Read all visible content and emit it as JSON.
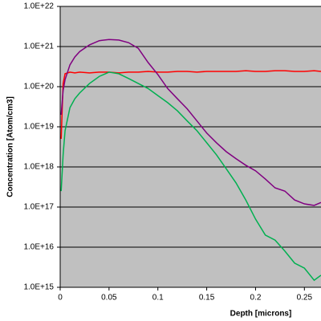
{
  "chart_data": {
    "type": "line",
    "xlabel": "Depth [microns]",
    "ylabel": "Concentration [Atom/cm3]",
    "yscale": "log",
    "grid": true,
    "background": "#c0c0c0",
    "x": [
      0.001,
      0.003,
      0.005,
      0.01,
      0.015,
      0.02,
      0.03,
      0.04,
      0.05,
      0.06,
      0.07,
      0.08,
      0.09,
      0.1,
      0.11,
      0.12,
      0.13,
      0.14,
      0.15,
      0.16,
      0.17,
      0.18,
      0.19,
      0.2,
      0.21,
      0.22,
      0.23,
      0.24,
      0.25,
      0.26,
      0.267
    ],
    "series": [
      {
        "color": "#ff0000",
        "values": [
          5e+18,
          1.2e+20,
          2.1e+20,
          2.3e+20,
          2.2e+20,
          2.3e+20,
          2.2e+20,
          2.3e+20,
          2.3e+20,
          2.2e+20,
          2.3e+20,
          2.3e+20,
          2.4e+20,
          2.3e+20,
          2.3e+20,
          2.4e+20,
          2.4e+20,
          2.3e+20,
          2.4e+20,
          2.4e+20,
          2.4e+20,
          2.4e+20,
          2.5e+20,
          2.4e+20,
          2.4e+20,
          2.5e+20,
          2.5e+20,
          2.4e+20,
          2.4e+20,
          2.5e+20,
          2.4e+20
        ]
      },
      {
        "color": "#800080",
        "values": [
          2e+19,
          8e+19,
          1.5e+20,
          3.5e+20,
          5.5e+20,
          7.5e+20,
          1.1e+21,
          1.4e+21,
          1.5e+21,
          1.45e+21,
          1.25e+21,
          9e+20,
          4e+20,
          2e+20,
          9e+19,
          5e+19,
          2.8e+19,
          1.4e+19,
          7e+18,
          4e+18,
          2.4e+18,
          1.6e+18,
          1.1e+18,
          8e+17,
          5e+17,
          3e+17,
          2.5e+17,
          1.5e+17,
          1.2e+17,
          1.1e+17,
          1.3e+17
        ]
      },
      {
        "color": "#00b050",
        "values": [
          2.5e+17,
          2e+18,
          8e+18,
          3e+19,
          5e+19,
          7e+19,
          1.2e+20,
          1.8e+20,
          2.3e+20,
          2.1e+20,
          1.6e+20,
          1.2e+20,
          9e+19,
          6e+19,
          4e+19,
          2.5e+19,
          1.4e+19,
          8e+18,
          4e+18,
          2e+18,
          9e+17,
          4e+17,
          1.5e+17,
          5e+16,
          2e+16,
          1.5e+16,
          8000000000000000.0,
          4000000000000000.0,
          3000000000000000.0,
          1500000000000000.0,
          2000000000000000.0
        ]
      }
    ],
    "xlim": [
      0,
      0.267
    ],
    "xticks": [
      0,
      0.05,
      0.1,
      0.15,
      0.2,
      0.25
    ],
    "ylim": [
      1000000000000000.0,
      1e+22
    ],
    "yticks": [
      {
        "value": 1000000000000000.0,
        "label": "1.0E+15"
      },
      {
        "value": 1e+16,
        "label": "1.0E+16"
      },
      {
        "value": 1e+17,
        "label": "1.0E+17"
      },
      {
        "value": 1e+18,
        "label": "1.0E+18"
      },
      {
        "value": 1e+19,
        "label": "1.0E+19"
      },
      {
        "value": 1e+20,
        "label": "1.0E+20"
      },
      {
        "value": 1e+21,
        "label": "1.0E+21"
      },
      {
        "value": 1e+22,
        "label": "1.0E+22"
      }
    ]
  }
}
